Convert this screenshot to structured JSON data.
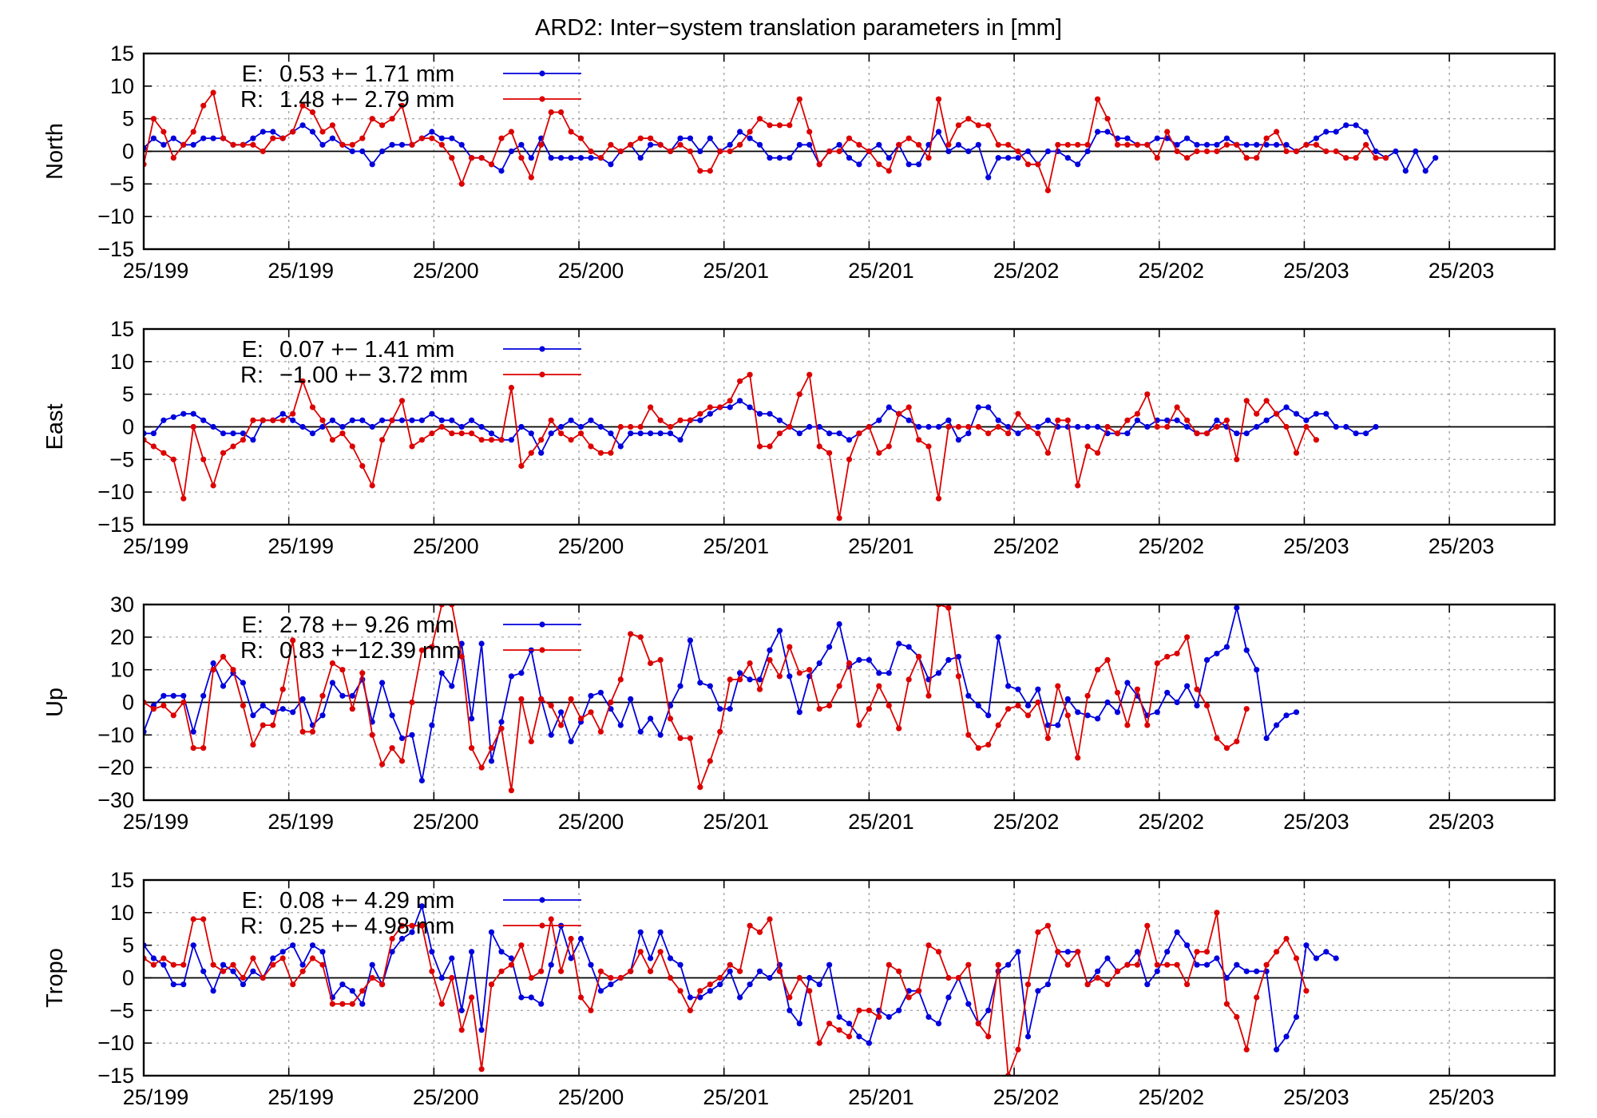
{
  "figure": {
    "title": "ARD2: Inter−system translation parameters in [mm]"
  },
  "colors": {
    "E": "#0000dd",
    "R": "#dd0000",
    "axis": "#000000",
    "grid": "#9a9a9a"
  },
  "chart_data": [
    {
      "type": "line",
      "panel": "north",
      "ylabel": "North",
      "ylim": [
        -15,
        15
      ],
      "yticks": [
        15,
        10,
        5,
        0,
        -5,
        -10,
        -15
      ],
      "xlim": [
        0,
        142
      ],
      "xtick_positions": [
        0,
        14.6,
        29.2,
        43.8,
        58.4,
        73,
        87.6,
        102.2,
        116.8,
        131.4
      ],
      "xtick_labels": [
        "25/199",
        "25/199",
        "25/200",
        "25/200",
        "25/201",
        "25/201",
        "25/202",
        "25/202",
        "25/203",
        "25/203"
      ],
      "grid": true,
      "legend_position": "top-left",
      "series": [
        {
          "key": "E",
          "legend_label": "E:",
          "legend_value": "0.53 +− 1.71 mm",
          "values": [
            0.5,
            2,
            1,
            2,
            1,
            1,
            2,
            2,
            2,
            1,
            1,
            2,
            3,
            3,
            2,
            3,
            4,
            3,
            1,
            2,
            1,
            0,
            0,
            -2,
            0,
            1,
            1,
            1,
            2,
            3,
            2,
            2,
            1,
            -1,
            -1,
            -2,
            -3,
            0,
            1,
            -1,
            2,
            -1,
            -1,
            -1,
            -1,
            -1,
            -1,
            -2,
            0,
            1,
            -1,
            1,
            1,
            0,
            2,
            2,
            0,
            2,
            0,
            1,
            3,
            2,
            1,
            -1,
            -1,
            -1,
            1,
            1,
            -2,
            0,
            1,
            -1,
            -2,
            0,
            1,
            -1,
            1,
            -2,
            -2,
            1,
            3,
            0,
            1,
            0,
            1,
            -4,
            -1,
            -1,
            -1,
            0,
            -2,
            0,
            0,
            -1,
            -2,
            0,
            3,
            3,
            2,
            2,
            1,
            1,
            2,
            2,
            1,
            2,
            1,
            1,
            1,
            2,
            1,
            1,
            1,
            1,
            1,
            1,
            0,
            1,
            2,
            3,
            3,
            4,
            4,
            3,
            0,
            -1,
            0,
            -3,
            0,
            -3,
            -1
          ]
        },
        {
          "key": "R",
          "legend_label": "R:",
          "legend_value": "1.48 +− 2.79 mm",
          "values": [
            -2,
            5,
            3,
            -1,
            1,
            3,
            7,
            9,
            2,
            1,
            1,
            1,
            0,
            2,
            2,
            3,
            7,
            6,
            3,
            4,
            1,
            1,
            2,
            5,
            4,
            5,
            7,
            1,
            2,
            2,
            1,
            -1,
            -5,
            -1,
            -1,
            -2,
            2,
            3,
            -1,
            -4,
            1,
            6,
            6,
            3,
            2,
            0,
            -1,
            1,
            0,
            1,
            2,
            2,
            1,
            0,
            1,
            0,
            -3,
            -3,
            0,
            0,
            1,
            3,
            5,
            4,
            4,
            4,
            8,
            3,
            -2,
            0,
            0,
            2,
            1,
            0,
            -2,
            -3,
            1,
            2,
            1,
            -1,
            8,
            1,
            4,
            5,
            4,
            4,
            1,
            1,
            0,
            -2,
            -2,
            -6,
            1,
            1,
            1,
            1,
            8,
            5,
            1,
            1,
            1,
            1,
            -1,
            3,
            0,
            -1,
            0,
            0,
            0,
            1,
            1,
            -1,
            -1,
            2,
            3,
            0,
            0,
            1,
            1,
            0,
            0,
            -1,
            -1,
            1,
            -1,
            -1
          ]
        }
      ]
    },
    {
      "type": "line",
      "panel": "east",
      "ylabel": "East",
      "ylim": [
        -15,
        15
      ],
      "yticks": [
        15,
        10,
        5,
        0,
        -5,
        -10,
        -15
      ],
      "xlim": [
        0,
        142
      ],
      "xtick_positions": [
        0,
        14.6,
        29.2,
        43.8,
        58.4,
        73,
        87.6,
        102.2,
        116.8,
        131.4
      ],
      "xtick_labels": [
        "25/199",
        "25/199",
        "25/200",
        "25/200",
        "25/201",
        "25/201",
        "25/202",
        "25/202",
        "25/203",
        "25/203"
      ],
      "grid": true,
      "legend_position": "top-left",
      "series": [
        {
          "key": "E",
          "legend_label": "E:",
          "legend_value": "0.07 +− 1.41 mm",
          "values": [
            -1,
            -1,
            1,
            1.5,
            2,
            2,
            1,
            0,
            -1,
            -1,
            -1,
            -2,
            1,
            1,
            2,
            1,
            0,
            -1,
            0,
            1,
            0,
            1,
            1,
            0,
            1,
            1,
            1,
            1,
            1,
            2,
            1,
            1,
            0,
            1,
            0,
            -1,
            -2,
            -2,
            0,
            -1,
            -4,
            -1,
            0,
            1,
            0,
            1,
            0,
            -1,
            -3,
            -1,
            -1,
            -1,
            -1,
            -1,
            -2,
            1,
            1,
            2,
            3,
            3,
            4,
            3,
            2,
            2,
            1,
            0,
            -1,
            0,
            0,
            -1,
            -1,
            -2,
            -1,
            0,
            1,
            3,
            2,
            1,
            0,
            0,
            0,
            1,
            -2,
            -1,
            3,
            3,
            1,
            0,
            -1,
            0,
            0,
            1,
            0,
            0,
            0,
            0,
            0,
            -1,
            -1,
            -1,
            1,
            0,
            1,
            1,
            1,
            0,
            -1,
            -1,
            1,
            0,
            -1,
            -1,
            0,
            1,
            2,
            3,
            2,
            1,
            2,
            2,
            0,
            0,
            -1,
            -1,
            0
          ]
        },
        {
          "key": "R",
          "legend_label": "R:",
          "legend_value": "−1.00 +− 3.72 mm",
          "values": [
            -2,
            -3,
            -4,
            -5,
            -11,
            0,
            -5,
            -9,
            -4,
            -3,
            -2,
            1,
            1,
            1,
            1,
            2,
            7,
            3,
            1,
            -2,
            -1,
            -3,
            -6,
            -9,
            -2,
            1,
            4,
            -3,
            -2,
            -1,
            0,
            -1,
            -1,
            -1,
            -2,
            -2,
            -2,
            6,
            -6,
            -4,
            -2,
            1,
            -1,
            -2,
            -1,
            -3,
            -4,
            -4,
            0,
            0,
            0,
            3,
            1,
            0,
            1,
            1,
            2,
            3,
            3,
            4,
            7,
            8,
            -3,
            -3,
            -1,
            0,
            5,
            8,
            -3,
            -4,
            -14,
            -5,
            -1,
            0,
            -4,
            -3,
            2,
            3,
            -2,
            -3,
            -11,
            0,
            0,
            0,
            0,
            -1,
            0,
            -1,
            2,
            0,
            -1,
            -4,
            1,
            1,
            -9,
            -3,
            -4,
            0,
            -1,
            1,
            2,
            5,
            0,
            0,
            3,
            1,
            -1,
            -1,
            0,
            1,
            -5,
            4,
            2,
            4,
            2,
            0,
            -4,
            0,
            -2
          ]
        }
      ]
    },
    {
      "type": "line",
      "panel": "up",
      "ylabel": "Up",
      "ylim": [
        -30,
        30
      ],
      "yticks": [
        30,
        20,
        10,
        0,
        -10,
        -20,
        -30
      ],
      "xlim": [
        0,
        142
      ],
      "xtick_positions": [
        0,
        14.6,
        29.2,
        43.8,
        58.4,
        73,
        87.6,
        102.2,
        116.8,
        131.4
      ],
      "xtick_labels": [
        "25/199",
        "25/199",
        "25/200",
        "25/200",
        "25/201",
        "25/201",
        "25/202",
        "25/202",
        "25/203",
        "25/203"
      ],
      "grid": true,
      "legend_position": "top-left",
      "series": [
        {
          "key": "E",
          "legend_label": "E:",
          "legend_value": "2.78 +− 9.26 mm",
          "values": [
            -9,
            -1,
            2,
            2,
            2,
            -9,
            2,
            12,
            5,
            9,
            6,
            -4,
            -1,
            -3,
            -2,
            -3,
            1,
            -7,
            -4,
            6,
            2,
            2,
            7,
            -6,
            6,
            -4,
            -11,
            -10,
            -24,
            -7,
            9,
            5,
            18,
            -5,
            18,
            -18,
            -6,
            8,
            9,
            16,
            1,
            -10,
            -3,
            -12,
            -6,
            2,
            3,
            -2,
            -7,
            1,
            -9,
            -5,
            -10,
            -1,
            5,
            19,
            6,
            5,
            -2,
            -2,
            9,
            7,
            7,
            16,
            22,
            8,
            -3,
            8,
            12,
            17,
            24,
            11,
            13,
            13,
            9,
            9,
            18,
            17,
            14,
            7,
            9,
            13,
            14,
            2,
            -1,
            -4,
            20,
            5,
            4,
            -1,
            4,
            -7,
            -7,
            1,
            -3,
            -4,
            -5,
            0,
            -3,
            6,
            2,
            -4,
            -3,
            3,
            0,
            5,
            -1,
            13,
            15,
            17,
            29,
            16,
            10,
            -11,
            -7,
            -4,
            -3
          ]
        },
        {
          "key": "R",
          "legend_label": "R:",
          "legend_value": "0.83 +−12.39 mm",
          "values": [
            0,
            -2,
            -1,
            -4,
            0,
            -14,
            -14,
            10,
            14,
            10,
            -1,
            -13,
            -7,
            -7,
            4,
            19,
            -9,
            -9,
            2,
            12,
            10,
            -2,
            9,
            -10,
            -19,
            -14,
            -18,
            0,
            16,
            17,
            30,
            30,
            14,
            -14,
            -20,
            -14,
            -8,
            -27,
            1,
            -12,
            1,
            -1,
            -7,
            1,
            -5,
            -3,
            -9,
            0,
            7,
            21,
            20,
            12,
            13,
            -5,
            -11,
            -11,
            -26,
            -18,
            -9,
            7,
            7,
            12,
            4,
            13,
            8,
            17,
            9,
            10,
            -2,
            -1,
            5,
            12,
            -7,
            -2,
            5,
            -1,
            -8,
            7,
            14,
            2,
            30,
            29,
            8,
            -10,
            -14,
            -13,
            -7,
            -2,
            -1,
            -4,
            0,
            -11,
            5,
            -4,
            -17,
            2,
            10,
            13,
            3,
            -7,
            4,
            -7,
            12,
            14,
            15,
            20,
            4,
            -1,
            -11,
            -14,
            -12,
            -2
          ]
        }
      ]
    },
    {
      "type": "line",
      "panel": "tropo",
      "ylabel": "Tropo",
      "ylim": [
        -15,
        15
      ],
      "yticks": [
        15,
        10,
        5,
        0,
        -5,
        -10,
        -15
      ],
      "xlim": [
        0,
        142
      ],
      "xtick_positions": [
        0,
        14.6,
        29.2,
        43.8,
        58.4,
        73,
        87.6,
        102.2,
        116.8,
        131.4
      ],
      "xtick_labels": [
        "25/199",
        "25/199",
        "25/200",
        "25/200",
        "25/201",
        "25/201",
        "25/202",
        "25/202",
        "25/203",
        "25/203"
      ],
      "grid": true,
      "legend_position": "top-left",
      "series": [
        {
          "key": "E",
          "legend_label": "E:",
          "legend_value": "0.08 +− 4.29 mm",
          "values": [
            5,
            3,
            2,
            -1,
            -1,
            5,
            1,
            -2,
            2,
            1,
            -1,
            1,
            0,
            3,
            4,
            5,
            2,
            5,
            4,
            -3,
            -1,
            -2,
            -4,
            2,
            -1,
            4,
            6,
            7,
            11,
            4,
            0,
            3,
            -5,
            4,
            -8,
            7,
            4,
            3,
            -3,
            -3,
            -4,
            2,
            8,
            3,
            6,
            2,
            -2,
            -1,
            0,
            1,
            7,
            3,
            7,
            3,
            2,
            -3,
            -3,
            -2,
            -1,
            1,
            -3,
            -1,
            1,
            0,
            2,
            -5,
            -7,
            0,
            -1,
            2,
            -6,
            -7,
            -9,
            -10,
            -5,
            -6,
            -5,
            -2,
            -2,
            -6,
            -7,
            -3,
            0,
            -4,
            -7,
            -5,
            1,
            2,
            4,
            -9,
            -2,
            -1,
            4,
            4,
            4,
            -1,
            1,
            3,
            1,
            2,
            4,
            -1,
            1,
            4,
            7,
            5,
            2,
            2,
            3,
            0,
            2,
            1,
            1,
            1,
            -11,
            -9,
            -6,
            5,
            3,
            4,
            3
          ]
        },
        {
          "key": "R",
          "legend_label": "R:",
          "legend_value": "0.25 +− 4.98 mm",
          "values": [
            3,
            2,
            3,
            2,
            2,
            9,
            9,
            2,
            1,
            2,
            0,
            3,
            0,
            2,
            3,
            -1,
            1,
            3,
            2,
            -4,
            -4,
            -4,
            -2,
            0,
            -1,
            6,
            8,
            8,
            8,
            1,
            -4,
            0,
            -8,
            -3,
            -14,
            -1,
            1,
            2,
            5,
            0,
            1,
            9,
            1,
            6,
            -3,
            -5,
            1,
            0,
            0,
            1,
            4,
            1,
            4,
            0,
            -2,
            -5,
            -2,
            -1,
            0,
            2,
            1,
            8,
            7,
            9,
            1,
            -3,
            0,
            -2,
            -10,
            -7,
            -8,
            -9,
            -5,
            -5,
            -6,
            2,
            1,
            -3,
            -2,
            5,
            4,
            0,
            0,
            2,
            -7,
            -9,
            2,
            -15,
            -11,
            -1,
            7,
            8,
            4,
            2,
            4,
            -1,
            0,
            -1,
            1,
            2,
            2,
            8,
            2,
            2,
            2,
            -1,
            4,
            4,
            10,
            -4,
            -6,
            -11,
            -3,
            2,
            4,
            6,
            3,
            -2
          ]
        }
      ]
    }
  ]
}
